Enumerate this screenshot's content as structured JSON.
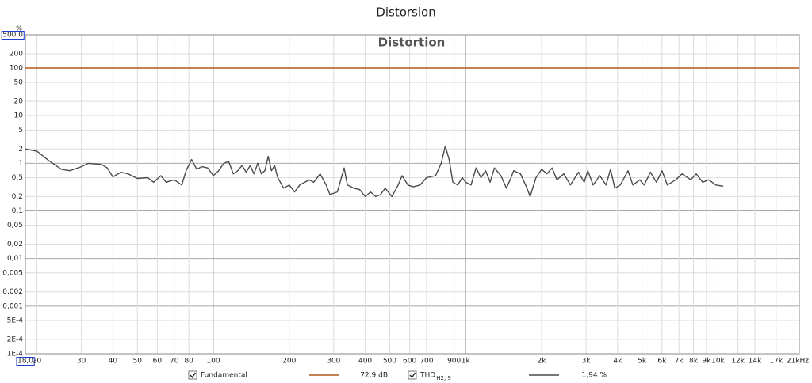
{
  "window_title": "Distorsion",
  "chart_data": {
    "type": "line",
    "title": "Distortion",
    "y_unit": "%",
    "xscale": "log",
    "yscale": "log",
    "grid": true,
    "xlim": [
      18,
      21000
    ],
    "ylim": [
      0.0001,
      500
    ],
    "xticks": [
      {
        "value": 18,
        "label": "18,0"
      },
      20,
      30,
      40,
      50,
      60,
      70,
      80,
      100,
      200,
      300,
      400,
      500,
      600,
      700,
      900,
      {
        "value": 1000,
        "label": "1k"
      },
      {
        "value": 2000,
        "label": "2k"
      },
      {
        "value": 3000,
        "label": "3k"
      },
      {
        "value": 4000,
        "label": "4k"
      },
      {
        "value": 5000,
        "label": "5k"
      },
      {
        "value": 6000,
        "label": "6k"
      },
      {
        "value": 7000,
        "label": "7k"
      },
      {
        "value": 8000,
        "label": "8k"
      },
      {
        "value": 9000,
        "label": "9k"
      },
      {
        "value": 10000,
        "label": "10k"
      },
      {
        "value": 12000,
        "label": "12k"
      },
      {
        "value": 14000,
        "label": "14k"
      },
      {
        "value": 17000,
        "label": "17k"
      },
      {
        "value": 21000,
        "label": "21kHz"
      }
    ],
    "yticks": [
      {
        "value": 500,
        "label": "500,0"
      },
      200,
      100,
      50,
      20,
      10,
      5,
      2,
      1,
      {
        "value": 0.5,
        "label": "0,5"
      },
      {
        "value": 0.2,
        "label": "0,2"
      },
      {
        "value": 0.1,
        "label": "0,1"
      },
      {
        "value": 0.05,
        "label": "0,05"
      },
      {
        "value": 0.02,
        "label": "0,02"
      },
      {
        "value": 0.01,
        "label": "0,01"
      },
      {
        "value": 0.005,
        "label": "0,005"
      },
      {
        "value": 0.002,
        "label": "0,002"
      },
      {
        "value": 0.001,
        "label": "0,001"
      },
      {
        "value": 0.0005,
        "label": "5E-4"
      },
      {
        "value": 0.0002,
        "label": "2E-4"
      },
      {
        "value": 0.0001,
        "label": "1E-4"
      }
    ],
    "series": [
      {
        "name": "Fundamental",
        "color": "#b4571c",
        "legend_value": "72,9 dB",
        "checked": true,
        "x": [
          18,
          21000
        ],
        "values": [
          100,
          100
        ]
      },
      {
        "name": "THD",
        "name_sub": "H2, 9",
        "color": "#4a4a4a",
        "legend_value": "1,94 %",
        "checked": true,
        "x": [
          18,
          20,
          22,
          25,
          27,
          30,
          32,
          36,
          38,
          40,
          43,
          46,
          50,
          55,
          58,
          62,
          65,
          70,
          75,
          78,
          82,
          86,
          90,
          95,
          100,
          105,
          110,
          115,
          120,
          125,
          130,
          135,
          140,
          145,
          150,
          155,
          160,
          165,
          170,
          175,
          180,
          190,
          200,
          210,
          220,
          240,
          250,
          265,
          280,
          290,
          310,
          330,
          340,
          360,
          380,
          400,
          420,
          440,
          460,
          480,
          510,
          540,
          560,
          590,
          620,
          660,
          700,
          760,
          800,
          830,
          860,
          890,
          930,
          970,
          1000,
          1050,
          1100,
          1150,
          1200,
          1250,
          1300,
          1380,
          1450,
          1500,
          1550,
          1650,
          1750,
          1800,
          1900,
          2000,
          2100,
          2200,
          2300,
          2450,
          2600,
          2800,
          2950,
          3050,
          3200,
          3400,
          3600,
          3750,
          3900,
          4100,
          4400,
          4600,
          4900,
          5100,
          5400,
          5700,
          6000,
          6300,
          6800,
          7200,
          7800,
          8200,
          8700,
          9200,
          9800,
          10500
        ],
        "values": [
          2.0,
          1.8,
          1.2,
          0.75,
          0.7,
          0.85,
          1.0,
          0.95,
          0.8,
          0.52,
          0.65,
          0.6,
          0.48,
          0.5,
          0.4,
          0.55,
          0.4,
          0.45,
          0.35,
          0.7,
          1.2,
          0.75,
          0.85,
          0.8,
          0.55,
          0.7,
          1.0,
          1.1,
          0.6,
          0.7,
          0.9,
          0.65,
          0.9,
          0.6,
          1.0,
          0.6,
          0.7,
          1.4,
          0.7,
          0.9,
          0.5,
          0.3,
          0.35,
          0.25,
          0.35,
          0.45,
          0.4,
          0.6,
          0.35,
          0.22,
          0.25,
          0.8,
          0.35,
          0.3,
          0.28,
          0.2,
          0.25,
          0.2,
          0.22,
          0.3,
          0.2,
          0.35,
          0.55,
          0.35,
          0.32,
          0.35,
          0.5,
          0.55,
          1.0,
          2.3,
          1.2,
          0.4,
          0.35,
          0.5,
          0.4,
          0.35,
          0.8,
          0.5,
          0.7,
          0.4,
          0.8,
          0.55,
          0.3,
          0.45,
          0.7,
          0.6,
          0.3,
          0.2,
          0.5,
          0.75,
          0.6,
          0.8,
          0.45,
          0.6,
          0.35,
          0.65,
          0.4,
          0.7,
          0.35,
          0.55,
          0.35,
          0.75,
          0.3,
          0.35,
          0.7,
          0.35,
          0.45,
          0.35,
          0.65,
          0.4,
          0.7,
          0.35,
          0.45,
          0.6,
          0.45,
          0.6,
          0.4,
          0.45,
          0.35,
          0.33
        ]
      }
    ]
  }
}
